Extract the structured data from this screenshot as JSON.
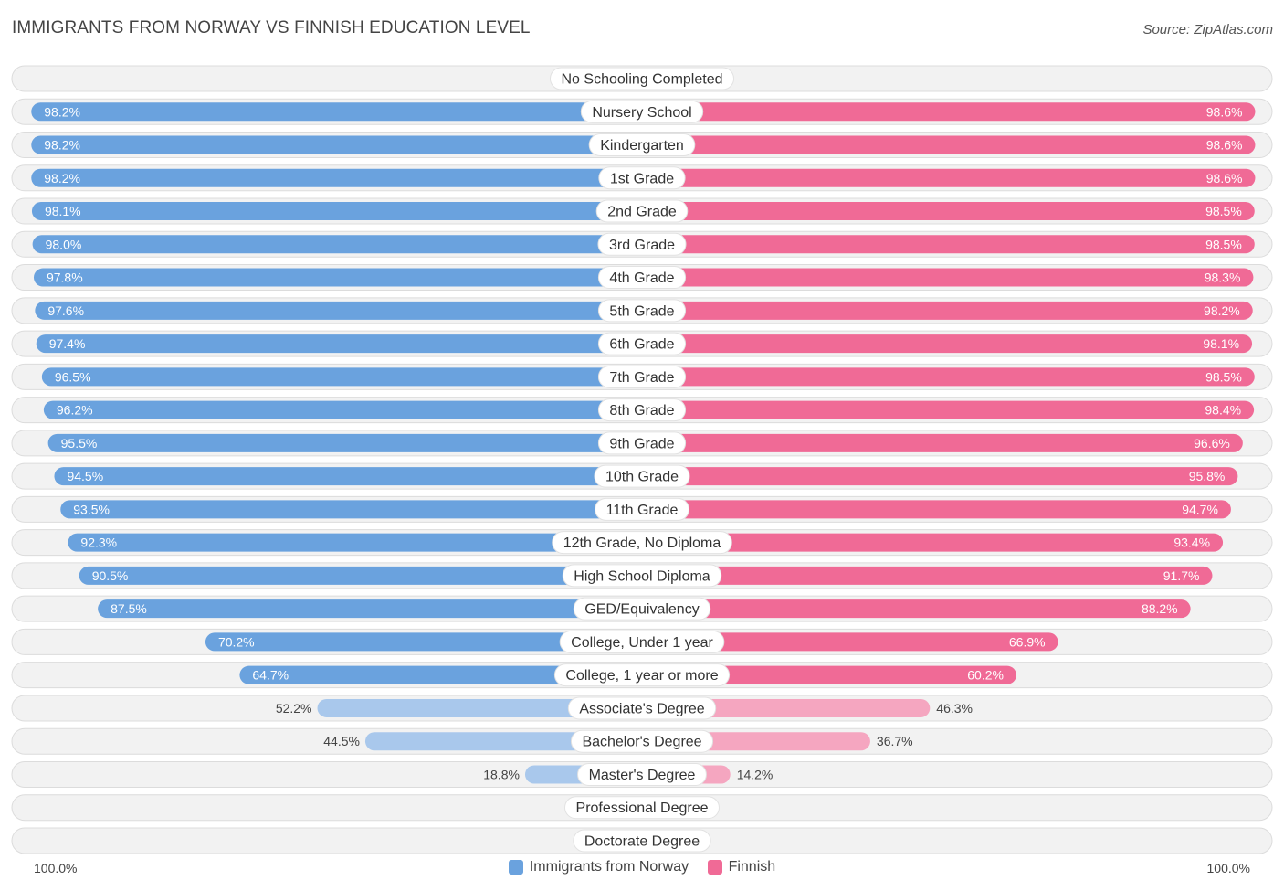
{
  "chart_data": {
    "type": "bar",
    "orientation": "horizontal-diverging",
    "title": "IMMIGRANTS FROM NORWAY VS FINNISH EDUCATION LEVEL",
    "source": "Source: ZipAtlas.com",
    "categories": [
      "No Schooling Completed",
      "Nursery School",
      "Kindergarten",
      "1st Grade",
      "2nd Grade",
      "3rd Grade",
      "4th Grade",
      "5th Grade",
      "6th Grade",
      "7th Grade",
      "8th Grade",
      "9th Grade",
      "10th Grade",
      "11th Grade",
      "12th Grade, No Diploma",
      "High School Diploma",
      "GED/Equivalency",
      "College, Under 1 year",
      "College, 1 year or more",
      "Associate's Degree",
      "Bachelor's Degree",
      "Master's Degree",
      "Professional Degree",
      "Doctorate Degree"
    ],
    "series": [
      {
        "name": "Immigrants from Norway",
        "color": "#6aa2de",
        "color_light": "#a9c8ec",
        "values": [
          1.9,
          98.2,
          98.2,
          98.2,
          98.1,
          98.0,
          97.8,
          97.6,
          97.4,
          96.5,
          96.2,
          95.5,
          94.5,
          93.5,
          92.3,
          90.5,
          87.5,
          70.2,
          64.7,
          52.2,
          44.5,
          18.8,
          6.0,
          2.4
        ]
      },
      {
        "name": "Finnish",
        "color": "#f06a96",
        "color_light": "#f5a6c0",
        "values": [
          1.5,
          98.6,
          98.6,
          98.6,
          98.5,
          98.5,
          98.3,
          98.2,
          98.1,
          98.5,
          98.4,
          96.6,
          95.8,
          94.7,
          93.4,
          91.7,
          88.2,
          66.9,
          60.2,
          46.3,
          36.7,
          14.2,
          4.2,
          1.8
        ]
      }
    ],
    "xlim": [
      0,
      100
    ],
    "axis_left_label": "100.0%",
    "axis_right_label": "100.0%",
    "value_suffix": "%",
    "legend_position": "bottom-center"
  }
}
